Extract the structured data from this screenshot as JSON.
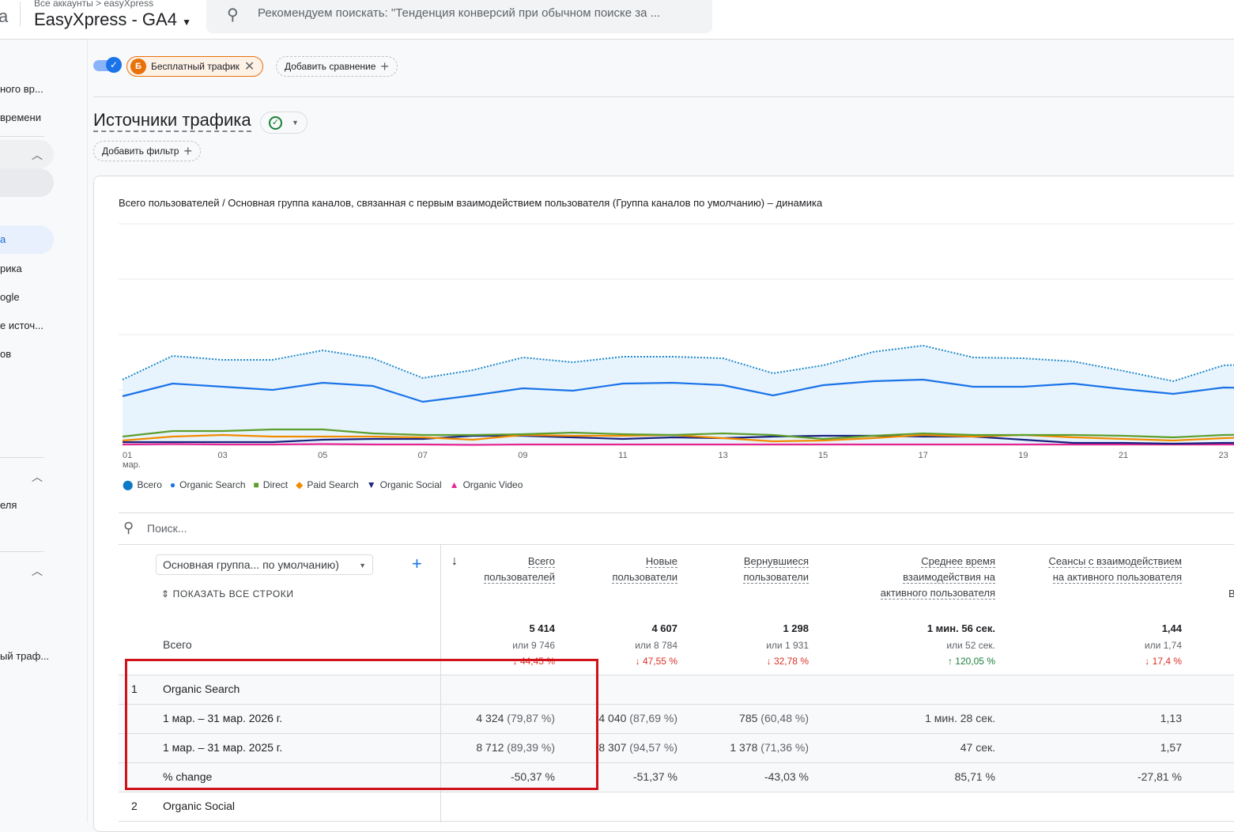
{
  "header": {
    "app_partial": "a",
    "breadcrumb": "Все аккаунты > easyXpress",
    "property": "EasyXpress - GA4",
    "search_placeholder": "Рекомендуем поискать: \"Тенденция конверсий при обычном поиске за ..."
  },
  "sidebar": {
    "items": [
      "ного вр...",
      "времени",
      "а",
      "рика",
      "ogle",
      "е источ...",
      "ов",
      "еля",
      "ый траф..."
    ]
  },
  "comparison": {
    "segment_badge": "Б",
    "segment": "Бесплатный трафик",
    "add_comparison": "Добавить сравнение"
  },
  "page": {
    "title": "Источники трафика",
    "add_filter": "Добавить фильтр"
  },
  "chart_data": {
    "type": "line",
    "title": "Всего пользователей / Основная группа каналов, связанная с первым взаимодействием пользователя (Группа каналов по умолчанию) – динамика",
    "x": [
      1,
      2,
      3,
      4,
      5,
      6,
      7,
      8,
      9,
      10,
      11,
      12,
      13,
      14,
      15,
      16,
      17,
      18,
      19,
      20,
      21,
      22,
      23,
      24
    ],
    "xtick_labels": [
      "01",
      "03",
      "05",
      "07",
      "09",
      "11",
      "13",
      "15",
      "17",
      "19",
      "21",
      "23"
    ],
    "xtick_sub": "мар.",
    "ylim": [
      0,
      560
    ],
    "grid": true,
    "legend": "bottom-left",
    "series": [
      {
        "name": "Всего",
        "color": "#1a73e8",
        "style": "dotted-area",
        "values": [
          166,
          226,
          216,
          216,
          240,
          220,
          170,
          190,
          222,
          210,
          224,
          224,
          220,
          182,
          202,
          236,
          252,
          222,
          220,
          212,
          188,
          162,
          202,
          206
        ]
      },
      {
        "name": "Organic Search",
        "color": "#1a73e8",
        "values": [
          124,
          156,
          148,
          140,
          158,
          150,
          110,
          126,
          144,
          138,
          156,
          158,
          152,
          126,
          152,
          162,
          166,
          148,
          148,
          156,
          142,
          130,
          146,
          144
        ]
      },
      {
        "name": "Direct",
        "color": "#5e9e2e",
        "values": [
          22,
          36,
          36,
          40,
          40,
          30,
          26,
          26,
          28,
          32,
          28,
          26,
          30,
          26,
          16,
          24,
          30,
          26,
          26,
          26,
          24,
          20,
          26,
          28
        ]
      },
      {
        "name": "Paid Search",
        "color": "#f28b00",
        "values": [
          12,
          22,
          26,
          22,
          22,
          22,
          20,
          14,
          26,
          24,
          24,
          26,
          18,
          10,
          12,
          18,
          26,
          22,
          26,
          20,
          16,
          12,
          18,
          22
        ]
      },
      {
        "name": "Organic Social",
        "color": "#1a237e",
        "values": [
          8,
          8,
          8,
          8,
          14,
          16,
          16,
          24,
          24,
          20,
          16,
          20,
          18,
          22,
          24,
          24,
          22,
          22,
          14,
          6,
          6,
          4,
          6,
          6
        ]
      },
      {
        "name": "Organic Video",
        "color": "#e52592",
        "values": [
          2,
          3,
          2,
          2,
          3,
          2,
          2,
          1,
          2,
          2,
          2,
          2,
          2,
          2,
          2,
          2,
          2,
          2,
          2,
          2,
          2,
          2,
          2,
          2
        ]
      }
    ]
  },
  "table": {
    "search_placeholder": "Поиск...",
    "dimension": "Основная группа... по умолчанию)",
    "show_all": "ПОКАЗАТЬ ВСЕ СТРОКИ",
    "columns": [
      {
        "l1": "Всего",
        "l2": "пользователей",
        "l3": "",
        "total": "5 414",
        "prev": "или 9 746",
        "change": "44,45 %",
        "dir": "down"
      },
      {
        "l1": "Новые",
        "l2": "пользователи",
        "l3": "",
        "total": "4 607",
        "prev": "или 8 784",
        "change": "47,55 %",
        "dir": "down"
      },
      {
        "l1": "Вернувшиеся",
        "l2": "пользователи",
        "l3": "",
        "total": "1 298",
        "prev": "или 1 931",
        "change": "32,78 %",
        "dir": "down"
      },
      {
        "l1": "Среднее время",
        "l2": "взаимодействия на",
        "l3": "активного пользователя",
        "total": "1 мин. 56 сек.",
        "prev": "или 52 сек.",
        "change": "120,05 %",
        "dir": "up"
      },
      {
        "l1": "Сеансы с взаимодействием",
        "l2": "на активного пользователя",
        "l3": "",
        "total": "1,44",
        "prev": "или 1,74",
        "change": "17,4 %",
        "dir": "down"
      }
    ],
    "cut_col": "В",
    "total_label": "Всего",
    "rows": [
      {
        "n": "1",
        "label": "Organic Search"
      },
      {
        "label": "1 мар. – 31 мар. 2026 г.",
        "cells": [
          [
            "4 324",
            "(79,87 %)"
          ],
          [
            "4 040",
            "(87,69 %)"
          ],
          [
            "785",
            "(60,48 %)"
          ],
          [
            "1 мин. 28 сек.",
            ""
          ],
          [
            "1,13",
            ""
          ]
        ]
      },
      {
        "label": "1 мар. – 31 мар. 2025 г.",
        "cells": [
          [
            "8 712",
            "(89,39 %)"
          ],
          [
            "8 307",
            "(94,57 %)"
          ],
          [
            "1 378",
            "(71,36 %)"
          ],
          [
            "47 сек.",
            ""
          ],
          [
            "1,57",
            ""
          ]
        ]
      },
      {
        "label": "% change",
        "cells": [
          [
            "-50,37 %",
            ""
          ],
          [
            "-51,37 %",
            ""
          ],
          [
            "-43,03 %",
            ""
          ],
          [
            "85,71 %",
            ""
          ],
          [
            "-27,81 %",
            ""
          ]
        ]
      },
      {
        "n": "2",
        "label": "Organic Social"
      }
    ]
  }
}
